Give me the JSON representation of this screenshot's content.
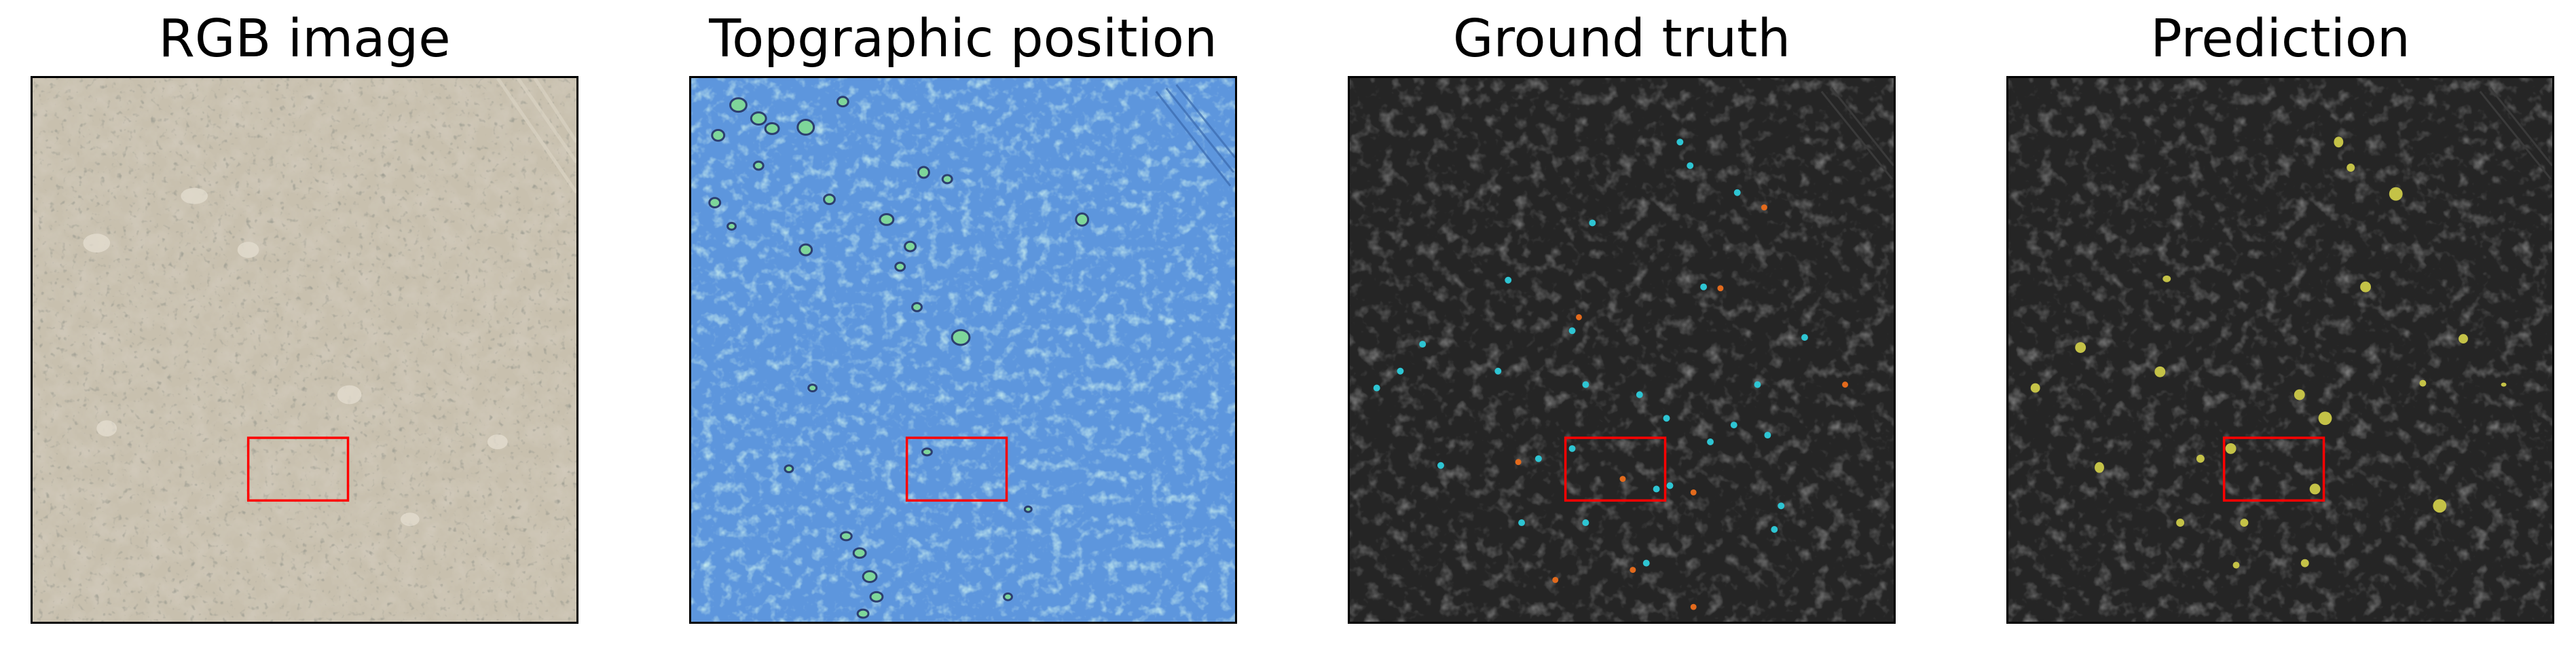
{
  "figure": {
    "panels": [
      {
        "title": "RGB image",
        "view": "rgb-aerial-photo"
      },
      {
        "title": "Topgraphic position",
        "view": "topographic-position-index"
      },
      {
        "title": "Ground truth",
        "view": "hillshade-with-labels"
      },
      {
        "title": "Prediction",
        "view": "hillshade-with-predictions"
      }
    ],
    "colors": {
      "frame": "#000000",
      "highlight_box": "#ff0000",
      "rgb_background": "#a0947d",
      "tpi_background": "#5d96dd",
      "tpi_mound": "#7ed69a",
      "hillshade_background": "#252525",
      "label_class_a": "#2ec5d3",
      "label_class_b": "#e36a1c",
      "prediction": "#c4c247"
    }
  }
}
